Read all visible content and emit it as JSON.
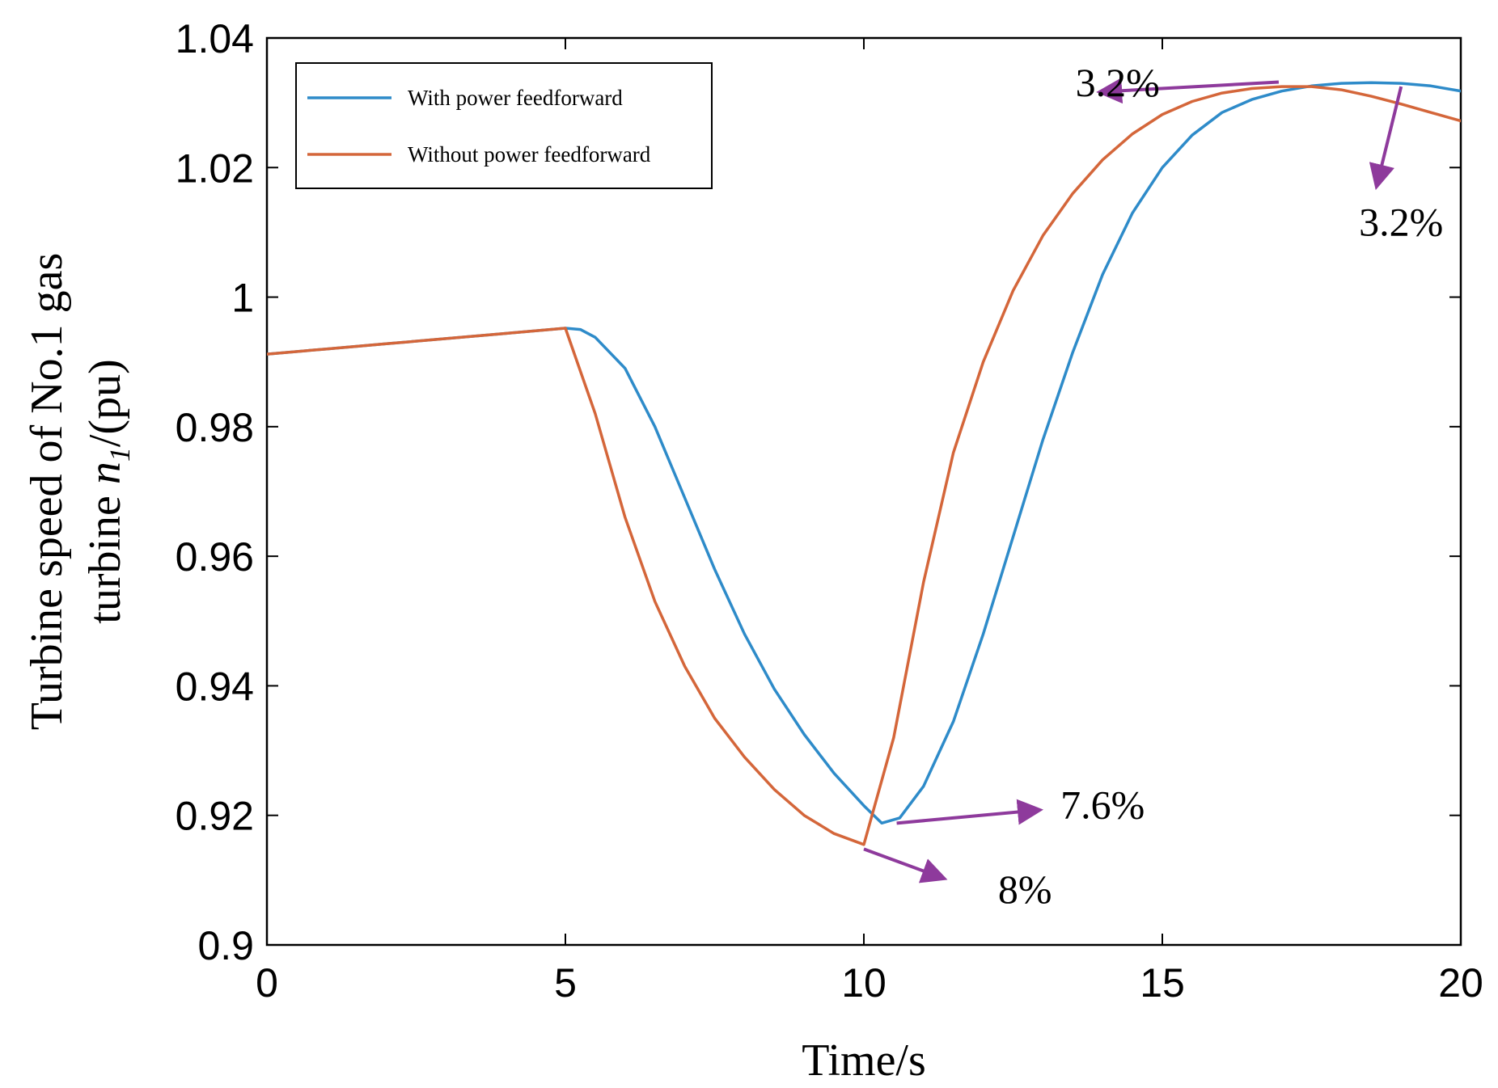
{
  "chart_data": {
    "type": "line",
    "title": "",
    "xlabel": "Time/s",
    "ylabel_line1": "Turbine speed of No.1 gas",
    "ylabel_line2_prefix": "turbine ",
    "ylabel_symbol": "n",
    "ylabel_subscript": "1",
    "ylabel_unit": "/(pu)",
    "xlim": [
      0,
      20
    ],
    "ylim": [
      0.9,
      1.04
    ],
    "xticks": [
      0,
      5,
      10,
      15,
      20
    ],
    "xtick_labels": [
      "0",
      "5",
      "10",
      "15",
      "20"
    ],
    "yticks": [
      0.9,
      0.92,
      0.94,
      0.96,
      0.98,
      1.0,
      1.02,
      1.04
    ],
    "ytick_labels": [
      "0.9",
      "0.92",
      "0.94",
      "0.96",
      "0.98",
      "1",
      "1.02",
      "1.04"
    ],
    "grid": false,
    "legend_position": "top-left",
    "series": [
      {
        "name": "With power feedforward",
        "color": "#2e8bc9",
        "x": [
          0,
          1,
          2,
          3,
          4,
          5,
          5.25,
          5.5,
          6,
          6.5,
          7,
          7.5,
          8,
          8.5,
          9,
          9.5,
          10,
          10.3,
          10.6,
          11,
          11.5,
          12,
          12.5,
          13,
          13.5,
          14,
          14.5,
          15,
          15.5,
          16,
          16.5,
          17,
          17.5,
          18,
          18.5,
          19,
          19.5,
          20
        ],
        "y": [
          0.9912,
          0.992,
          0.9928,
          0.9936,
          0.9944,
          0.9952,
          0.995,
          0.9938,
          0.989,
          0.98,
          0.969,
          0.958,
          0.948,
          0.9395,
          0.9325,
          0.9265,
          0.9215,
          0.9188,
          0.9196,
          0.9245,
          0.9345,
          0.948,
          0.963,
          0.978,
          0.9915,
          1.0035,
          1.013,
          1.02,
          1.025,
          1.0285,
          1.0305,
          1.0318,
          1.0326,
          1.033,
          1.0331,
          1.033,
          1.0326,
          1.0318
        ]
      },
      {
        "name": "Without power feedforward",
        "color": "#d4663a",
        "x": [
          0,
          1,
          2,
          3,
          4,
          5,
          5.5,
          6,
          6.5,
          7,
          7.5,
          8,
          8.5,
          9,
          9.5,
          10,
          10.5,
          11,
          11.5,
          12,
          12.5,
          13,
          13.5,
          14,
          14.5,
          15,
          15.5,
          16,
          16.5,
          17,
          17.5,
          18,
          18.5,
          19,
          19.5,
          20
        ],
        "y": [
          0.9912,
          0.992,
          0.9928,
          0.9936,
          0.9944,
          0.9952,
          0.982,
          0.966,
          0.953,
          0.943,
          0.935,
          0.929,
          0.924,
          0.92,
          0.9172,
          0.9155,
          0.932,
          0.956,
          0.976,
          0.99,
          1.001,
          1.0095,
          1.016,
          1.0212,
          1.0252,
          1.0282,
          1.0302,
          1.0315,
          1.0322,
          1.0325,
          1.0325,
          1.032,
          1.031,
          1.0298,
          1.0285,
          1.0272
        ]
      }
    ],
    "annotations": [
      {
        "text": "3.2%",
        "label_x": 14.25,
        "label_y": 1.031,
        "arrow_from": [
          16.95,
          1.0332
        ],
        "arrow_to": [
          14.0,
          1.0317
        ]
      },
      {
        "text": "3.2%",
        "label_x": 19.0,
        "label_y": 1.0095,
        "arrow_from": [
          19.0,
          1.0325
        ],
        "arrow_to": [
          18.6,
          1.0175
        ]
      },
      {
        "text": "7.6%",
        "label_x": 14.0,
        "label_y": 0.9195,
        "arrow_from": [
          10.55,
          0.9188
        ],
        "arrow_to": [
          12.9,
          0.9208
        ]
      },
      {
        "text": "8%",
        "label_x": 12.7,
        "label_y": 0.9065,
        "arrow_from": [
          10.0,
          0.9148
        ],
        "arrow_to": [
          11.3,
          0.9104
        ]
      }
    ],
    "annotation_color": "#8e3a9c"
  }
}
